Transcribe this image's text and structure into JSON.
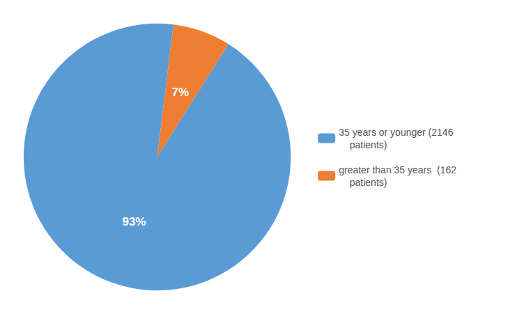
{
  "chart_data": {
    "type": "pie",
    "categories": [
      "35 years or younger (2146\n    patients)",
      "greater than 35 years  (162\n    patients)"
    ],
    "values": [
      93,
      7
    ],
    "value_labels": [
      "93%",
      "7%"
    ],
    "colors": [
      "#5B9BD5",
      "#ED7D31"
    ],
    "data_labels": true,
    "legend": "right"
  }
}
